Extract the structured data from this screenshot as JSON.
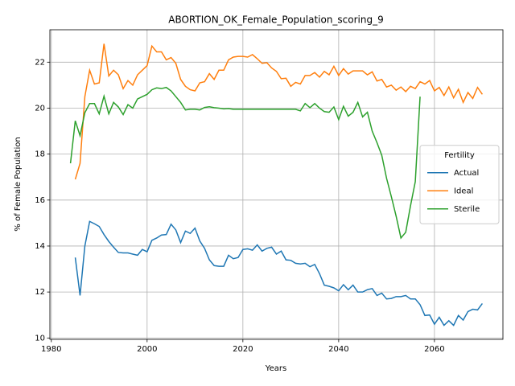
{
  "chart_data": {
    "type": "line",
    "title": "ABORTION_OK_Female_Population_scoring_9",
    "x_label": "Years",
    "y_label": "% of Female Population",
    "x": [
      1984,
      1985,
      1986,
      1987,
      1988,
      1989,
      1990,
      1991,
      1992,
      1993,
      1994,
      1995,
      1996,
      1997,
      1998,
      1999,
      2000,
      2001,
      2002,
      2003,
      2004,
      2005,
      2006,
      2007,
      2008,
      2009,
      2010,
      2011,
      2012,
      2013,
      2014,
      2015,
      2016,
      2017,
      2018,
      2019,
      2020,
      2021,
      2022,
      2023,
      2024,
      2025,
      2026,
      2027,
      2028,
      2029,
      2030,
      2031,
      2032,
      2033,
      2034,
      2035,
      2036,
      2037,
      2038,
      2039,
      2040,
      2041,
      2042,
      2043,
      2044,
      2045,
      2046,
      2047,
      2048,
      2049,
      2050,
      2051,
      2052,
      2053,
      2054,
      2055,
      2056,
      2057,
      2058,
      2059,
      2060,
      2061,
      2062,
      2063,
      2064,
      2065,
      2066,
      2067,
      2068,
      2069,
      2070
    ],
    "series": [
      {
        "name": "Actual",
        "color": "#1f77b4",
        "values": [
          null,
          13.5,
          11.85,
          14.0,
          15.07,
          14.97,
          14.85,
          14.5,
          14.2,
          13.95,
          13.72,
          13.7,
          13.7,
          13.65,
          13.6,
          13.85,
          13.75,
          14.25,
          14.35,
          14.48,
          14.5,
          14.95,
          14.7,
          14.15,
          14.65,
          14.55,
          14.78,
          14.22,
          13.9,
          13.4,
          13.15,
          13.12,
          13.12,
          13.6,
          13.45,
          13.5,
          13.85,
          13.88,
          13.82,
          14.05,
          13.78,
          13.9,
          13.95,
          13.65,
          13.78,
          13.4,
          13.38,
          13.25,
          13.22,
          13.25,
          13.1,
          13.2,
          12.8,
          12.3,
          12.25,
          12.18,
          12.05,
          12.32,
          12.1,
          12.3,
          12.0,
          12.0,
          12.1,
          12.15,
          11.85,
          11.95,
          11.7,
          11.72,
          11.8,
          11.8,
          11.85,
          11.7,
          11.7,
          11.45,
          10.98,
          11.0,
          10.6,
          10.9,
          10.55,
          10.75,
          10.55,
          10.98,
          10.78,
          11.15,
          11.25,
          11.22,
          11.5
        ]
      },
      {
        "name": "Ideal",
        "color": "#ff7f0e",
        "values": [
          null,
          16.9,
          17.6,
          20.5,
          21.65,
          21.05,
          21.1,
          22.8,
          21.4,
          21.65,
          21.45,
          20.85,
          21.2,
          21.0,
          21.45,
          21.65,
          21.85,
          22.7,
          22.45,
          22.45,
          22.1,
          22.2,
          21.95,
          21.25,
          20.95,
          20.8,
          20.75,
          21.1,
          21.15,
          21.5,
          21.25,
          21.65,
          21.65,
          22.1,
          22.22,
          22.25,
          22.25,
          22.22,
          22.33,
          22.15,
          21.95,
          21.98,
          21.75,
          21.6,
          21.28,
          21.3,
          20.95,
          21.12,
          21.05,
          21.42,
          21.42,
          21.55,
          21.35,
          21.6,
          21.45,
          21.82,
          21.42,
          21.72,
          21.48,
          21.62,
          21.62,
          21.62,
          21.45,
          21.58,
          21.18,
          21.25,
          20.92,
          21.0,
          20.78,
          20.92,
          20.72,
          20.95,
          20.85,
          21.15,
          21.05,
          21.2,
          20.75,
          20.9,
          20.55,
          20.92,
          20.45,
          20.82,
          20.25,
          20.68,
          20.42,
          20.9,
          20.6
        ]
      },
      {
        "name": "Sterile",
        "color": "#2ca02c",
        "values": [
          17.6,
          19.45,
          18.8,
          19.8,
          20.2,
          20.2,
          19.75,
          20.52,
          19.75,
          20.25,
          20.05,
          19.72,
          20.15,
          20.0,
          20.4,
          20.5,
          20.6,
          20.8,
          20.88,
          20.85,
          20.9,
          20.75,
          20.5,
          20.25,
          19.92,
          19.95,
          19.95,
          19.92,
          20.03,
          20.06,
          20.02,
          20.0,
          19.97,
          19.98,
          19.95,
          19.95,
          19.95,
          19.95,
          19.95,
          19.95,
          19.95,
          19.95,
          19.95,
          19.95,
          19.95,
          19.95,
          19.95,
          19.95,
          19.88,
          20.2,
          20.02,
          20.2,
          20.0,
          19.85,
          19.82,
          20.05,
          19.5,
          20.08,
          19.65,
          19.82,
          20.25,
          19.62,
          19.82,
          19.0,
          18.5,
          17.95,
          16.95,
          16.15,
          15.3,
          14.35,
          14.6,
          15.75,
          16.8,
          20.5,
          null,
          null,
          null,
          null,
          null,
          null,
          null,
          null,
          null,
          null,
          null,
          null,
          null
        ]
      }
    ],
    "xlim": [
      1979.7,
      2074.3
    ],
    "xticks": [
      1980,
      2000,
      2020,
      2040,
      2060
    ],
    "ylim": [
      9.94,
      23.41
    ],
    "yticks": [
      10,
      12,
      14,
      16,
      18,
      20,
      22
    ],
    "grid": true,
    "legend_title": "Fertility",
    "legend_position": "center right"
  }
}
